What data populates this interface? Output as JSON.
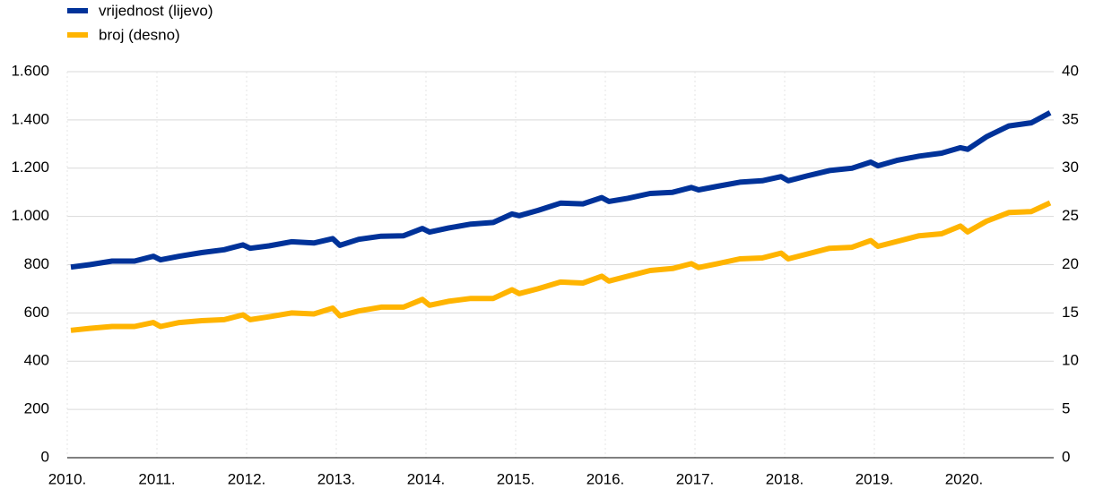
{
  "chart_data": {
    "type": "line",
    "x": [
      2010.04,
      2010.25,
      2010.5,
      2010.75,
      2010.96,
      2011.04,
      2011.25,
      2011.5,
      2011.75,
      2011.96,
      2012.04,
      2012.25,
      2012.5,
      2012.75,
      2012.96,
      2013.04,
      2013.25,
      2013.5,
      2013.75,
      2013.96,
      2014.04,
      2014.25,
      2014.5,
      2014.75,
      2014.96,
      2015.04,
      2015.25,
      2015.5,
      2015.75,
      2015.96,
      2016.04,
      2016.25,
      2016.5,
      2016.75,
      2016.96,
      2017.04,
      2017.25,
      2017.5,
      2017.75,
      2017.96,
      2018.04,
      2018.25,
      2018.5,
      2018.75,
      2018.96,
      2019.04,
      2019.25,
      2019.5,
      2019.75,
      2019.96,
      2020.04,
      2020.25,
      2020.5,
      2020.75,
      2020.96
    ],
    "series": [
      {
        "name": "vrijednost (lijevo)",
        "color": "#003299",
        "axis": "y",
        "values": [
          790,
          800,
          815,
          815,
          835,
          820,
          835,
          850,
          862,
          882,
          868,
          878,
          895,
          890,
          908,
          880,
          905,
          918,
          920,
          950,
          935,
          952,
          968,
          975,
          1010,
          1003,
          1025,
          1055,
          1052,
          1078,
          1062,
          1075,
          1095,
          1100,
          1120,
          1110,
          1125,
          1142,
          1148,
          1165,
          1148,
          1168,
          1190,
          1200,
          1225,
          1210,
          1232,
          1250,
          1262,
          1285,
          1278,
          1330,
          1375,
          1388,
          1430
        ]
      },
      {
        "name": "broj (desno)",
        "color": "#ffb400",
        "axis": "y2",
        "values": [
          13.2,
          13.4,
          13.6,
          13.6,
          14.0,
          13.6,
          14.0,
          14.2,
          14.3,
          14.8,
          14.3,
          14.6,
          15.0,
          14.9,
          15.5,
          14.7,
          15.2,
          15.6,
          15.6,
          16.4,
          15.8,
          16.2,
          16.5,
          16.5,
          17.4,
          17.0,
          17.5,
          18.2,
          18.1,
          18.8,
          18.3,
          18.8,
          19.4,
          19.6,
          20.1,
          19.7,
          20.1,
          20.6,
          20.7,
          21.2,
          20.6,
          21.1,
          21.7,
          21.8,
          22.5,
          21.9,
          22.4,
          23.0,
          23.2,
          24.0,
          23.4,
          24.5,
          25.4,
          25.5,
          26.4
        ]
      }
    ],
    "xlim": [
      2010,
      2021
    ],
    "xticks": [
      {
        "value": 2010,
        "label": "2010."
      },
      {
        "value": 2011,
        "label": "2011."
      },
      {
        "value": 2012,
        "label": "2012."
      },
      {
        "value": 2013,
        "label": "2013."
      },
      {
        "value": 2014,
        "label": "2014."
      },
      {
        "value": 2015,
        "label": "2015."
      },
      {
        "value": 2016,
        "label": "2016."
      },
      {
        "value": 2017,
        "label": "2017."
      },
      {
        "value": 2018,
        "label": "2018."
      },
      {
        "value": 2019,
        "label": "2019."
      },
      {
        "value": 2020,
        "label": "2020."
      }
    ],
    "ylim": [
      0,
      1600
    ],
    "yticks": [
      0,
      200,
      400,
      600,
      800,
      {
        "value": 1000,
        "label": "1.000"
      },
      {
        "value": 1200,
        "label": "1.200"
      },
      {
        "value": 1400,
        "label": "1.400"
      },
      {
        "value": 1600,
        "label": "1.600"
      }
    ],
    "y2lim": [
      0,
      40
    ],
    "y2ticks": [
      0,
      5,
      10,
      15,
      20,
      25,
      30,
      35,
      40
    ],
    "grid": true,
    "legend": "top-left"
  }
}
